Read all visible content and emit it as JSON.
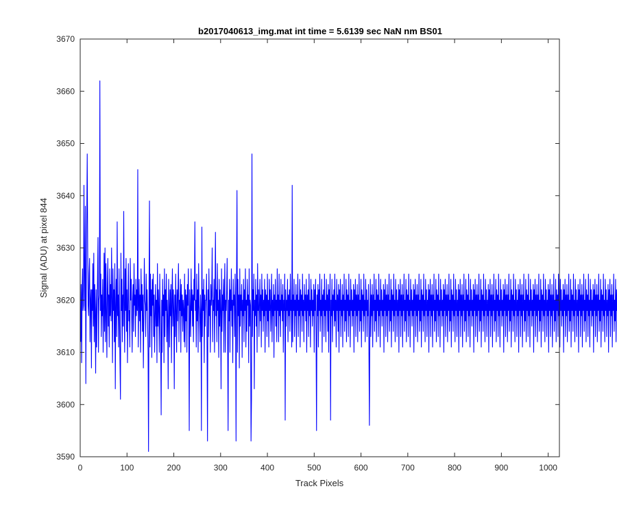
{
  "chart_data": {
    "type": "line",
    "title": "b2017040613_img.mat int time = 5.6139 sec  NaN nm BS01",
    "xlabel": "Track Pixels",
    "ylabel": "Signal (ADU) at pixel 844",
    "xlim": [
      0,
      1024
    ],
    "ylim": [
      3590,
      3670
    ],
    "xticks": [
      0,
      100,
      200,
      300,
      400,
      500,
      600,
      700,
      800,
      900,
      1000
    ],
    "yticks": [
      3590,
      3600,
      3610,
      3620,
      3630,
      3640,
      3650,
      3660,
      3670
    ],
    "grid": false,
    "line_color": "#0000ff",
    "series": [
      {
        "x_start": 1,
        "x_step": 1,
        "values": [
          3612,
          3623,
          3608,
          3621,
          3626,
          3618,
          3619,
          3642,
          3625,
          3618,
          3638,
          3604,
          3624,
          3636,
          3648,
          3630,
          3619,
          3617,
          3625,
          3628,
          3612,
          3620,
          3622,
          3607,
          3622,
          3618,
          3627,
          3615,
          3629,
          3612,
          3623,
          3618,
          3606,
          3622,
          3611,
          3618,
          3624,
          3632,
          3610,
          3620,
          3621,
          3662,
          3618,
          3625,
          3613,
          3621,
          3617,
          3624,
          3610,
          3618,
          3629,
          3614,
          3630,
          3612,
          3627,
          3618,
          3609,
          3622,
          3628,
          3615,
          3621,
          3611,
          3626,
          3617,
          3623,
          3616,
          3630,
          3620,
          3608,
          3626,
          3618,
          3622,
          3612,
          3627,
          3603,
          3619,
          3624,
          3613,
          3635,
          3617,
          3621,
          3611,
          3626,
          3617,
          3608,
          3601,
          3629,
          3618,
          3624,
          3612,
          3621,
          3615,
          3637,
          3619,
          3610,
          3626,
          3618,
          3628,
          3614,
          3622,
          3608,
          3620,
          3627,
          3616,
          3618,
          3611,
          3628,
          3620,
          3624,
          3617,
          3610,
          3620,
          3623,
          3614,
          3627,
          3619,
          3621,
          3613,
          3624,
          3617,
          3622,
          3618,
          3645,
          3611,
          3619,
          3624,
          3616,
          3621,
          3610,
          3626,
          3618,
          3623,
          3614,
          3621,
          3607,
          3617,
          3628,
          3620,
          3619,
          3613,
          3625,
          3618,
          3622,
          3616,
          3610,
          3591,
          3620,
          3639,
          3611,
          3625,
          3617,
          3622,
          3609,
          3624,
          3619,
          3625,
          3613,
          3621,
          3610,
          3617,
          3623,
          3615,
          3620,
          3608,
          3627,
          3615,
          3622,
          3618,
          3610,
          3625,
          3617,
          3612,
          3598,
          3620,
          3610,
          3624,
          3617,
          3621,
          3608,
          3626,
          3613,
          3622,
          3618,
          3625,
          3612,
          3620,
          3616,
          3603,
          3624,
          3619,
          3611,
          3622,
          3617,
          3623,
          3608,
          3620,
          3626,
          3615,
          3622,
          3618,
          3603,
          3621,
          3613,
          3625,
          3618,
          3610,
          3622,
          3616,
          3622,
          3627,
          3612,
          3620,
          3618,
          3624,
          3610,
          3623,
          3617,
          3621,
          3614,
          3620,
          3618,
          3612,
          3625,
          3611,
          3622,
          3616,
          3621,
          3610,
          3623,
          3619,
          3626,
          3615,
          3595,
          3622,
          3618,
          3613,
          3626,
          3618,
          3622,
          3615,
          3621,
          3612,
          3624,
          3620,
          3635,
          3618,
          3620,
          3611,
          3625,
          3616,
          3622,
          3610,
          3627,
          3619,
          3617,
          3612,
          3621,
          3618,
          3595,
          3634,
          3613,
          3622,
          3618,
          3624,
          3608,
          3621,
          3615,
          3620,
          3620,
          3625,
          3611,
          3593,
          3622,
          3613,
          3626,
          3617,
          3620,
          3610,
          3623,
          3619,
          3621,
          3630,
          3612,
          3620,
          3618,
          3624,
          3610,
          3621,
          3633,
          3617,
          3622,
          3612,
          3627,
          3618,
          3620,
          3609,
          3624,
          3615,
          3622,
          3618,
          3603,
          3626,
          3614,
          3621,
          3618,
          3624,
          3610,
          3621,
          3627,
          3610,
          3620,
          3618,
          3622,
          3628,
          3613,
          3595,
          3620,
          3616,
          3624,
          3610,
          3622,
          3618,
          3626,
          3615,
          3620,
          3608,
          3624,
          3619,
          3621,
          3613,
          3625,
          3618,
          3593,
          3622,
          3641,
          3610,
          3624,
          3617,
          3621,
          3607,
          3626,
          3615,
          3621,
          3618,
          3623,
          3609,
          3620,
          3617,
          3624,
          3612,
          3622,
          3618,
          3626,
          3611,
          3620,
          3614,
          3624,
          3619,
          3621,
          3608,
          3626,
          3615,
          3620,
          3619,
          3593,
          3601,
          3648,
          3613,
          3622,
          3618,
          3625,
          3603,
          3620,
          3617,
          3624,
          3615,
          3621,
          3610,
          3627,
          3618,
          3622,
          3613,
          3619,
          3624,
          3616,
          3621,
          3611,
          3625,
          3618,
          3622,
          3614,
          3620,
          3617,
          3624,
          3610,
          3622,
          3618,
          3621,
          3613,
          3625,
          3616,
          3620,
          3611,
          3624,
          3618,
          3622,
          3614,
          3619,
          3625,
          3612,
          3620,
          3617,
          3623,
          3609,
          3621,
          3618,
          3624,
          3615,
          3620,
          3612,
          3626,
          3618,
          3621,
          3612,
          3625,
          3617,
          3620,
          3613,
          3624,
          3618,
          3621,
          3616,
          3623,
          3610,
          3620,
          3618,
          3625,
          3597,
          3622,
          3615,
          3620,
          3618,
          3624,
          3612,
          3621,
          3617,
          3622,
          3614,
          3625,
          3618,
          3620,
          3611,
          3642,
          3612,
          3621,
          3618,
          3624,
          3613,
          3620,
          3617,
          3623,
          3610,
          3621,
          3618,
          3625,
          3613,
          3620,
          3617,
          3624,
          3611,
          3622,
          3618,
          3621,
          3614,
          3625,
          3617,
          3620,
          3612,
          3623,
          3618,
          3621,
          3616,
          3624,
          3610,
          3621,
          3618,
          3622,
          3613,
          3625,
          3617,
          3620,
          3611,
          3624,
          3618,
          3622,
          3615,
          3620,
          3617,
          3623,
          3610,
          3622,
          3618,
          3624,
          3613,
          3595,
          3621,
          3617,
          3623,
          3611,
          3622,
          3618,
          3625,
          3614,
          3620,
          3617,
          3624,
          3610,
          3621,
          3618,
          3622,
          3613,
          3625,
          3617,
          3620,
          3612,
          3624,
          3618,
          3621,
          3614,
          3623,
          3610,
          3622,
          3618,
          3625,
          3597,
          3620,
          3617,
          3624,
          3612,
          3621,
          3618,
          3622,
          3615,
          3625,
          3616,
          3620,
          3611,
          3624,
          3618,
          3621,
          3614,
          3623,
          3610,
          3622,
          3618,
          3624,
          3613,
          3620,
          3617,
          3623,
          3611,
          3621,
          3618,
          3625,
          3614,
          3620,
          3616,
          3624,
          3612,
          3622,
          3618,
          3621,
          3613,
          3625,
          3617,
          3620,
          3611,
          3624,
          3618,
          3622,
          3615,
          3620,
          3617,
          3623,
          3610,
          3622,
          3618,
          3624,
          3613,
          3621,
          3617,
          3623,
          3612,
          3621,
          3618,
          3625,
          3614,
          3620,
          3616,
          3624,
          3611,
          3622,
          3618,
          3621,
          3614,
          3625,
          3617,
          3620,
          3612,
          3624,
          3618,
          3622,
          3613,
          3620,
          3617,
          3623,
          3610,
          3596,
          3618,
          3624,
          3613,
          3621,
          3617,
          3623,
          3611,
          3621,
          3618,
          3625,
          3614,
          3620,
          3616,
          3624,
          3612,
          3622,
          3618,
          3621,
          3613,
          3625,
          3617,
          3620,
          3611,
          3624,
          3618,
          3622,
          3615,
          3620,
          3617,
          3623,
          3610,
          3622,
          3618,
          3624,
          3613,
          3621,
          3617,
          3623,
          3612,
          3621,
          3618,
          3625,
          3614,
          3620,
          3616,
          3624,
          3611,
          3622,
          3618,
          3621,
          3614,
          3625,
          3617,
          3620,
          3612,
          3624,
          3618,
          3622,
          3613,
          3620,
          3617,
          3623,
          3610,
          3622,
          3618,
          3624,
          3613,
          3621,
          3617,
          3623,
          3611,
          3621,
          3618,
          3625,
          3614,
          3620,
          3616,
          3624,
          3612,
          3622,
          3618,
          3621,
          3613,
          3625,
          3617,
          3620,
          3611,
          3624,
          3618,
          3622,
          3615,
          3620,
          3617,
          3623,
          3610,
          3622,
          3618,
          3624,
          3613,
          3621,
          3617,
          3623,
          3612,
          3621,
          3618,
          3625,
          3614,
          3620,
          3616,
          3624,
          3611,
          3622,
          3618,
          3621,
          3614,
          3625,
          3617,
          3620,
          3612,
          3624,
          3618,
          3622,
          3613,
          3620,
          3617,
          3623,
          3610,
          3622,
          3618,
          3624,
          3613,
          3621,
          3617,
          3623,
          3611,
          3621,
          3618,
          3625,
          3614,
          3620,
          3616,
          3624,
          3612,
          3622,
          3618,
          3621,
          3613,
          3625,
          3617,
          3620,
          3611,
          3624,
          3618,
          3622,
          3615,
          3620,
          3617,
          3623,
          3610,
          3622,
          3618,
          3624,
          3613,
          3621,
          3617,
          3623,
          3612,
          3621,
          3618,
          3625,
          3614,
          3620,
          3616,
          3624,
          3611,
          3622,
          3618,
          3621,
          3614,
          3625,
          3617,
          3620,
          3612,
          3624,
          3618,
          3622,
          3613,
          3620,
          3617,
          3623,
          3610,
          3622,
          3618,
          3624,
          3613,
          3621,
          3617,
          3623,
          3611,
          3621,
          3618,
          3625,
          3614,
          3620,
          3616,
          3624,
          3612,
          3622,
          3618,
          3621,
          3613,
          3625,
          3617,
          3620,
          3611,
          3624,
          3618,
          3622,
          3615,
          3620,
          3617,
          3623,
          3610,
          3622,
          3618,
          3624,
          3613,
          3621,
          3617,
          3623,
          3612,
          3621,
          3618,
          3625,
          3614,
          3620,
          3616,
          3624,
          3611,
          3622,
          3618,
          3621,
          3614,
          3625,
          3617,
          3620,
          3612,
          3624,
          3618,
          3622,
          3613,
          3620,
          3617,
          3623,
          3610,
          3622,
          3618,
          3624,
          3613,
          3621,
          3617,
          3623,
          3611,
          3621,
          3618,
          3625,
          3614,
          3620,
          3616,
          3624,
          3612,
          3622,
          3618,
          3621,
          3613,
          3625,
          3617,
          3620,
          3611,
          3624,
          3618,
          3622,
          3615,
          3620,
          3617,
          3623,
          3610,
          3622,
          3618,
          3624,
          3613,
          3621,
          3617,
          3623,
          3612,
          3621,
          3618,
          3625,
          3614,
          3620,
          3616,
          3624,
          3611,
          3622,
          3618,
          3621,
          3614,
          3625,
          3617,
          3620,
          3612,
          3624,
          3618,
          3622,
          3613,
          3620,
          3617,
          3623,
          3610,
          3622,
          3618,
          3624,
          3613,
          3621,
          3617,
          3623,
          3611,
          3621,
          3618,
          3625,
          3614,
          3620,
          3616,
          3624,
          3612,
          3622,
          3618,
          3621,
          3613,
          3625,
          3617,
          3620,
          3611,
          3624,
          3618,
          3622,
          3615,
          3620,
          3617,
          3623,
          3610,
          3622,
          3618,
          3624,
          3613,
          3621,
          3617,
          3623,
          3612,
          3621,
          3618,
          3625,
          3614,
          3620,
          3616,
          3624,
          3611,
          3622,
          3618,
          3621,
          3614,
          3625,
          3617,
          3620,
          3612,
          3624,
          3618,
          3622,
          3613,
          3620,
          3617,
          3623,
          3610,
          3622,
          3618,
          3624,
          3613,
          3621,
          3617,
          3623,
          3611,
          3621,
          3618,
          3625,
          3614,
          3620,
          3616,
          3624,
          3612,
          3622,
          3618,
          3621,
          3613,
          3625,
          3617,
          3620,
          3611,
          3624,
          3618,
          3622,
          3615,
          3620,
          3617,
          3623,
          3610,
          3622,
          3618,
          3624,
          3613,
          3621,
          3617,
          3623,
          3612,
          3621,
          3618,
          3625,
          3614,
          3620,
          3616,
          3624,
          3611,
          3622,
          3618,
          3621,
          3614,
          3625,
          3617,
          3620,
          3612,
          3624,
          3618,
          3622,
          3613,
          3620,
          3617,
          3623,
          3610,
          3622,
          3618,
          3624,
          3613,
          3621,
          3617,
          3623,
          3611,
          3621,
          3618,
          3625,
          3614,
          3620,
          3616,
          3624,
          3612,
          3622,
          3618,
          3621,
          3613,
          3625,
          3617,
          3620,
          3611,
          3624,
          3618,
          3622,
          3615,
          3620,
          3617,
          3623,
          3610,
          3622,
          3618,
          3624,
          3613,
          3621,
          3617,
          3623,
          3612,
          3621,
          3618,
          3625,
          3614,
          3620,
          3616,
          3624,
          3611,
          3622,
          3618,
          3621,
          3614,
          3625,
          3617,
          3620,
          3612,
          3624,
          3618,
          3622,
          3613,
          3620,
          3617,
          3623,
          3610,
          3622,
          3618,
          3624,
          3613,
          3621,
          3617,
          3623,
          3611,
          3621,
          3618,
          3625,
          3614,
          3620,
          3616,
          3624,
          3612,
          3622,
          3618,
          3621,
          3613,
          3625,
          3617,
          3620,
          3611,
          3624,
          3618,
          3622,
          3615,
          3620,
          3617,
          3623,
          3610,
          3622,
          3618,
          3624,
          3613,
          3621,
          3617,
          3623,
          3612,
          3621,
          3618,
          3625,
          3614,
          3620,
          3616,
          3624,
          3611,
          3622,
          3618,
          3621,
          3614,
          3625,
          3617,
          3620,
          3612,
          3624,
          3618,
          3622,
          3613
        ]
      }
    ]
  }
}
